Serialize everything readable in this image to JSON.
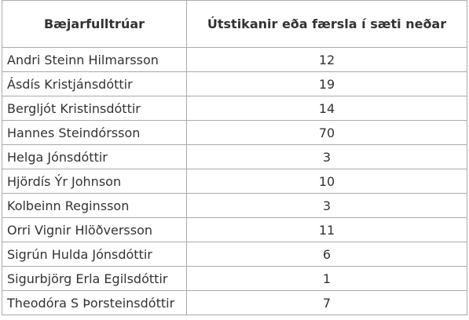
{
  "table": {
    "headers": [
      "Bæjarfulltrúar",
      "Útstikanir eða færsla í sæti neðar"
    ],
    "rows": [
      [
        "Andri Steinn Hilmarsson",
        "12"
      ],
      [
        "Ásdís Kristjánsdóttir",
        "19"
      ],
      [
        "Bergljót Kristinsdóttir",
        "14"
      ],
      [
        "Hannes Steindórsson",
        "70"
      ],
      [
        "Helga Jónsdóttir",
        "3"
      ],
      [
        "Hjördís Ýr Johnson",
        "10"
      ],
      [
        "Kolbeinn Reginsson",
        "3"
      ],
      [
        "Orri Vignir Hlöðversson",
        "11"
      ],
      [
        "Sigrún Hulda Jónsdóttir",
        "6"
      ],
      [
        "Sigurbjörg Erla Egilsdóttir",
        "1"
      ],
      [
        "Theodóra S Þorsteinsdóttir",
        "7"
      ]
    ]
  }
}
